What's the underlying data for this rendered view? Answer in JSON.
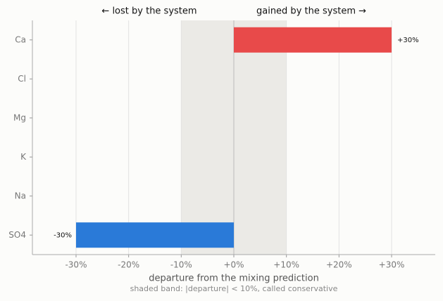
{
  "chart_data": {
    "type": "barh",
    "annotation_left": "←  lost by the system",
    "annotation_right": "gained by the system  →",
    "x_label": "departure from the mixing prediction",
    "note": "shaded band: |departure| < 10%, called conservative",
    "categories": [
      "Ca",
      "Cl",
      "Mg",
      "K",
      "Na",
      "SO4"
    ],
    "values": [
      30,
      0,
      0,
      0,
      0,
      -30
    ],
    "value_labels": [
      "+30%",
      null,
      null,
      null,
      null,
      "-30%"
    ],
    "colors": [
      "#e84a4a",
      "#e84a4a",
      "#e84a4a",
      "#e84a4a",
      "#e84a4a",
      "#2a7ad8"
    ],
    "band": [
      -10,
      10
    ],
    "xlim": [
      -38.3,
      38.3
    ],
    "xticks": [
      {
        "value": -30,
        "label": "-30%"
      },
      {
        "value": -20,
        "label": "-20%"
      },
      {
        "value": -10,
        "label": "-10%"
      },
      {
        "value": 0,
        "label": "+0%"
      },
      {
        "value": 10,
        "label": "+10%"
      },
      {
        "value": 20,
        "label": "+20%"
      },
      {
        "value": 30,
        "label": "+30%"
      }
    ],
    "grid": true
  }
}
